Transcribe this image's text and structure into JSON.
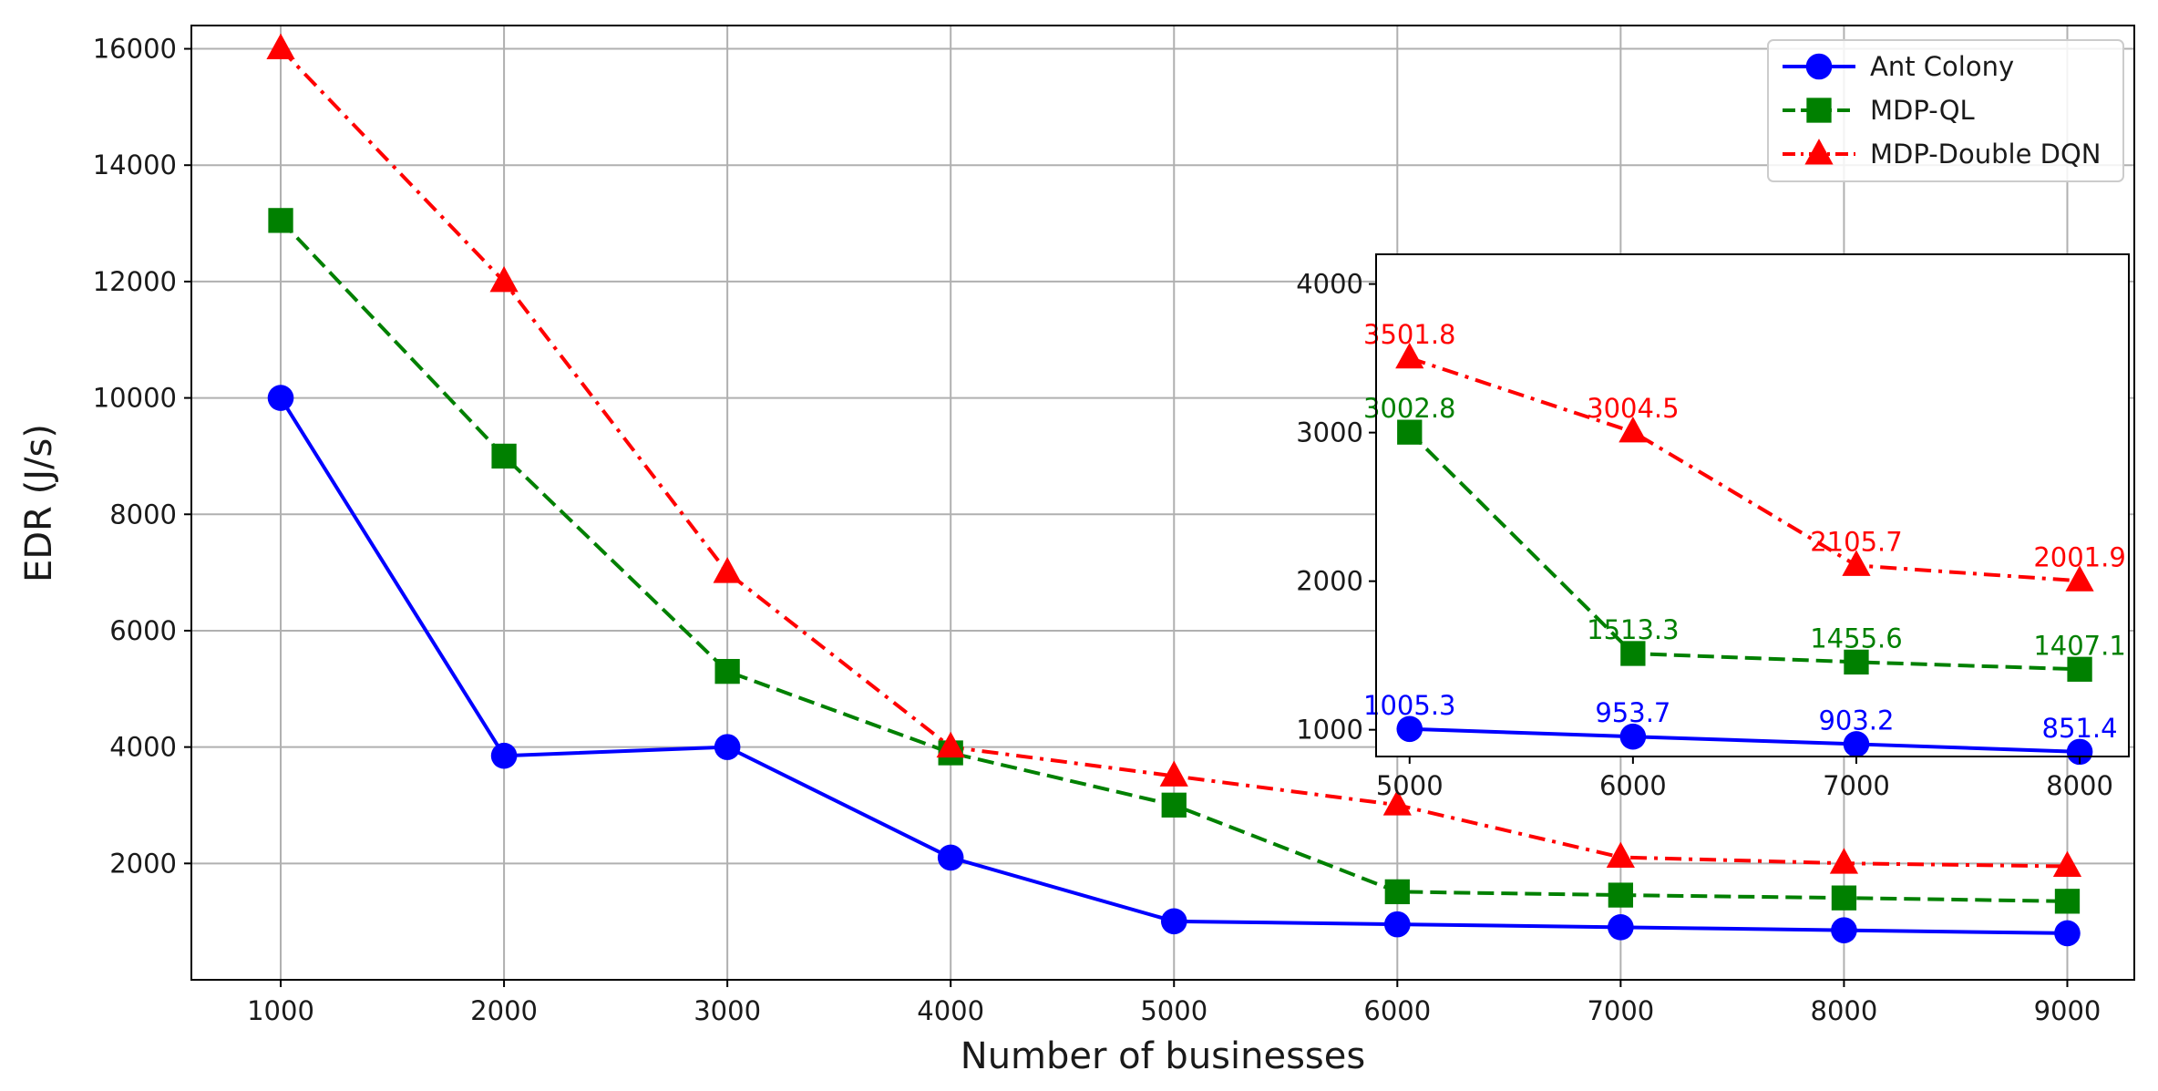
{
  "chart_data": [
    {
      "type": "line",
      "title": "",
      "xlabel": "Number of businesses",
      "ylabel": "EDR (J/s)",
      "x": [
        1000,
        2000,
        3000,
        4000,
        5000,
        6000,
        7000,
        8000,
        9000
      ],
      "xticks": [
        "1000",
        "2000",
        "3000",
        "4000",
        "5000",
        "6000",
        "7000",
        "8000",
        "9000"
      ],
      "yticks": [
        "2000",
        "4000",
        "6000",
        "8000",
        "10000",
        "12000",
        "14000",
        "16000"
      ],
      "xlim": [
        600,
        9300
      ],
      "ylim": [
        0,
        16400
      ],
      "grid": true,
      "legend_position": "top-right",
      "series": [
        {
          "name": "Ant Colony",
          "color": "#0000ff",
          "marker": "circle",
          "linestyle": "solid",
          "values": [
            10000,
            3850,
            4000,
            2100,
            1005.3,
            953.7,
            903.2,
            851.4,
            800
          ]
        },
        {
          "name": "MDP-QL",
          "color": "#008000",
          "marker": "square",
          "linestyle": "dashed",
          "values": [
            13050,
            9000,
            5300,
            3900,
            3002.8,
            1513.3,
            1455.6,
            1407.1,
            1350
          ]
        },
        {
          "name": "MDP-Double DQN",
          "color": "#ff0000",
          "marker": "triangle",
          "linestyle": "dashdot",
          "values": [
            16000,
            12000,
            7000,
            4000,
            3501.8,
            3004.5,
            2105.7,
            2001.9,
            1950
          ]
        }
      ]
    },
    {
      "type": "line",
      "title": "",
      "xlabel": "",
      "ylabel": "",
      "x": [
        5000,
        6000,
        7000,
        8000
      ],
      "xticks": [
        "5000",
        "6000",
        "7000",
        "8000"
      ],
      "yticks": [
        "1000",
        "2000",
        "3000",
        "4000"
      ],
      "xlim": [
        4850,
        8220
      ],
      "ylim": [
        820,
        4200
      ],
      "grid": false,
      "series": [
        {
          "name": "Ant Colony",
          "color": "#0000ff",
          "marker": "circle",
          "linestyle": "solid",
          "values": [
            1005.3,
            953.7,
            903.2,
            851.4
          ],
          "labels": [
            "1005.3",
            "953.7",
            "903.2",
            "851.4"
          ]
        },
        {
          "name": "MDP-QL",
          "color": "#008000",
          "marker": "square",
          "linestyle": "dashed",
          "values": [
            3002.8,
            1513.3,
            1455.6,
            1407.1
          ],
          "labels": [
            "3002.8",
            "1513.3",
            "1455.6",
            "1407.1"
          ]
        },
        {
          "name": "MDP-Double DQN",
          "color": "#ff0000",
          "marker": "triangle",
          "linestyle": "dashdot",
          "values": [
            3501.8,
            3004.5,
            2105.7,
            2001.9
          ],
          "labels": [
            "3501.8",
            "3004.5",
            "2105.7",
            "2001.9"
          ]
        }
      ]
    }
  ]
}
